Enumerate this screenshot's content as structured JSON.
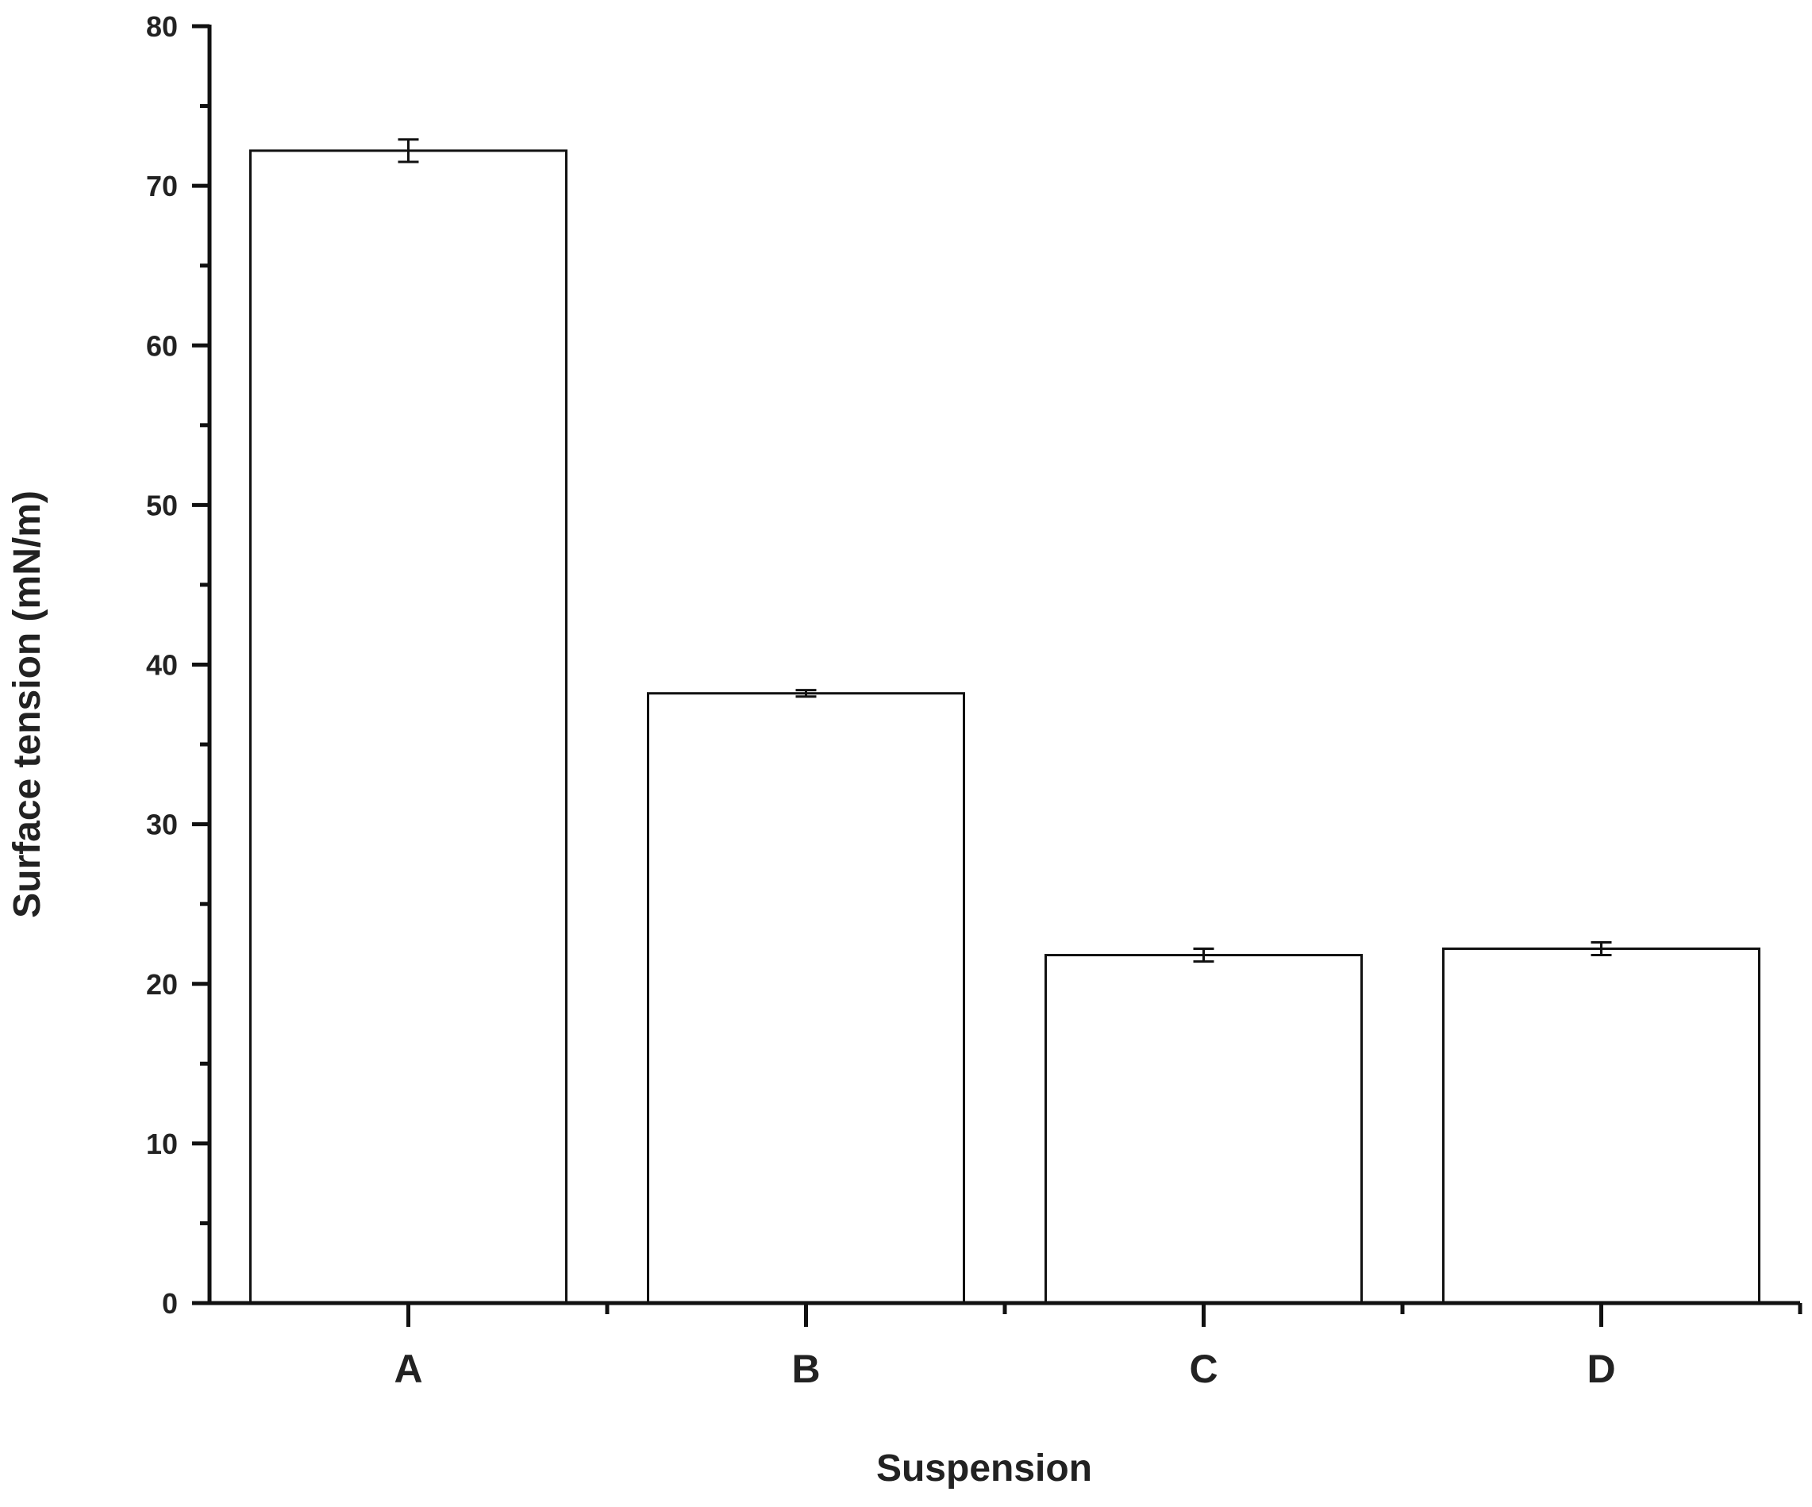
{
  "chart_data": {
    "type": "bar",
    "title": "",
    "xlabel": "Suspension",
    "ylabel": "Surface tension (mN/m)",
    "categories": [
      "A",
      "B",
      "C",
      "D"
    ],
    "values": [
      72.2,
      38.2,
      21.8,
      22.2
    ],
    "errors": [
      0.7,
      0.2,
      0.4,
      0.4
    ],
    "ylim": [
      0,
      80
    ],
    "yticks": [
      0,
      10,
      20,
      30,
      40,
      50,
      60,
      70,
      80
    ],
    "grid": false,
    "legend": "none",
    "colors": {
      "bar_fill": "#ffffff",
      "bar_stroke": "#111111",
      "axis": "#111111",
      "text": "#222222"
    }
  }
}
